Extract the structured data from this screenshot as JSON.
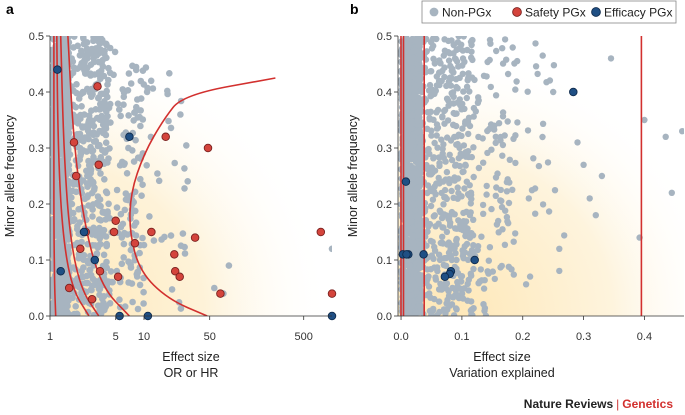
{
  "colors": {
    "non_pgx": "#a7b4c0",
    "safety": "#d4443c",
    "safety_edge": "#7a2220",
    "efficacy": "#1f4f84",
    "efficacy_edge": "#0f2b4d",
    "line": "#d2302e",
    "glow_inner": "#fde3aa",
    "glow_outer": "#ffffff"
  },
  "legend": [
    {
      "label": "Non-PGx",
      "color_key": "non_pgx"
    },
    {
      "label": "Safety PGx",
      "color_key": "safety"
    },
    {
      "label": "Efficacy PGx",
      "color_key": "efficacy"
    }
  ],
  "footer": {
    "journal": "Nature Reviews",
    "separator": "|",
    "section": "Genetics"
  },
  "chart_data": [
    {
      "panel": "a",
      "type": "scatter",
      "xscale": "log",
      "xlim": [
        1,
        1000
      ],
      "ylim": [
        0,
        0.5
      ],
      "xticks": [
        1,
        5,
        10,
        50,
        500
      ],
      "xtick_labels": [
        "1",
        "5",
        "10",
        "50",
        "500"
      ],
      "yticks": [
        0,
        0.1,
        0.2,
        0.3,
        0.4,
        0.5
      ],
      "ytick_labels": [
        "0.0",
        "0.1",
        "0.2",
        "0.3",
        "0.4",
        "0.5"
      ],
      "xlabel": "Effect size",
      "xlabel2": "OR or HR",
      "ylabel": "Minor allele frequency",
      "non_pgx_density": "dense cloud mostly within OR 1–5, thinning toward OR ~30",
      "safety": {
        "name": "Safety PGx",
        "x": [
          3.2,
          1.8,
          3.3,
          1.9,
          5,
          4.8,
          2.1,
          2.4,
          1.6,
          2.8,
          3.4,
          5.3,
          8,
          12,
          17,
          21,
          21.5,
          24,
          35,
          48,
          65,
          760,
          1000
        ],
        "y": [
          0.41,
          0.31,
          0.27,
          0.25,
          0.17,
          0.15,
          0.12,
          0.15,
          0.05,
          0.03,
          0.08,
          0.07,
          0.13,
          0.15,
          0.32,
          0.11,
          0.08,
          0.07,
          0.14,
          0.3,
          0.04,
          0.15,
          0.04
        ]
      },
      "efficacy": {
        "name": "Efficacy PGx",
        "x": [
          1.2,
          1.3,
          2.3,
          3,
          7,
          5.5,
          11,
          1000
        ],
        "y": [
          0.44,
          0.08,
          0.15,
          0.1,
          0.32,
          0.0,
          0.0,
          0.0
        ]
      },
      "curves": [
        {
          "name": "inner-left",
          "x": [
            1.1,
            1.1,
            1.1,
            1.12,
            1.15
          ],
          "y": [
            0.5,
            0.3,
            0.15,
            0.05,
            0.0
          ]
        },
        {
          "name": "inner-right",
          "x": [
            1.18,
            1.22,
            1.35,
            1.7,
            2.6
          ],
          "y": [
            0.5,
            0.3,
            0.15,
            0.05,
            0.0
          ]
        },
        {
          "name": "mid-left",
          "x": [
            1.3,
            1.4,
            1.6,
            2.1,
            3.3
          ],
          "y": [
            0.5,
            0.3,
            0.15,
            0.05,
            0.0
          ]
        },
        {
          "name": "mid-right",
          "x": [
            1.55,
            1.8,
            2.4,
            3.6,
            7
          ],
          "y": [
            0.5,
            0.3,
            0.15,
            0.05,
            0.0
          ]
        },
        {
          "name": "outer",
          "x": [
            47,
            18,
            9,
            7,
            7.2,
            10,
            16,
            26,
            250
          ],
          "y": [
            0.0,
            0.03,
            0.08,
            0.15,
            0.22,
            0.29,
            0.35,
            0.395,
            0.425
          ]
        }
      ]
    },
    {
      "panel": "b",
      "type": "scatter",
      "xscale": "linear",
      "xlim": [
        -0.005,
        0.465
      ],
      "ylim": [
        0,
        0.5
      ],
      "xticks": [
        0,
        0.1,
        0.2,
        0.3,
        0.4
      ],
      "xtick_labels": [
        "0.0",
        "0.1",
        "0.2",
        "0.3",
        "0.4"
      ],
      "yticks": [
        0,
        0.1,
        0.2,
        0.3,
        0.4,
        0.5
      ],
      "ytick_labels": [
        "0.0",
        "0.1",
        "0.2",
        "0.3",
        "0.4",
        "0.5"
      ],
      "xlabel": "Effect size",
      "xlabel2": "Variation explained",
      "ylabel": "Minor allele frequency",
      "non_pgx_density": "near-solid band for x < 0.03, scattered to ~0.46",
      "non_pgx_outliers": {
        "x": [
          0.345,
          0.4,
          0.435,
          0.445,
          0.462,
          0.392,
          0.3,
          0.29,
          0.25,
          0.21,
          0.26,
          0.33,
          0.32,
          0.31
        ],
        "y": [
          0.46,
          0.35,
          0.32,
          0.22,
          0.33,
          0.14,
          0.27,
          0.31,
          0.4,
          0.21,
          0.12,
          0.25,
          0.18,
          0.21
        ]
      },
      "efficacy": {
        "name": "Efficacy PGx",
        "x": [
          0.008,
          0.003,
          0.012,
          0.009,
          0.037,
          0.082,
          0.08,
          0.072,
          0.121,
          0.283
        ],
        "y": [
          0.24,
          0.11,
          0.11,
          0.11,
          0.11,
          0.08,
          0.075,
          0.07,
          0.1,
          0.4
        ]
      },
      "vlines": [
        0.0,
        0.004,
        0.038,
        0.395
      ]
    }
  ]
}
